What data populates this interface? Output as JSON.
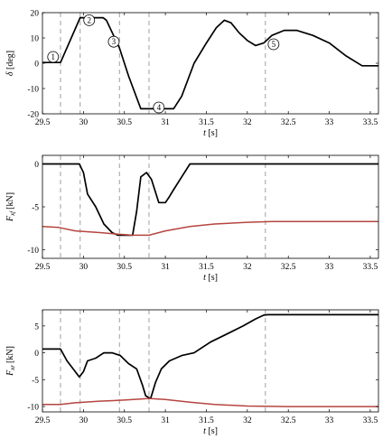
{
  "colors": {
    "black_series": "#000000",
    "red_series": "#b5453f",
    "dashed": "#a8a8a8"
  },
  "event_times": [
    29.72,
    29.96,
    30.44,
    30.8,
    32.22
  ],
  "chart_data": [
    {
      "type": "line",
      "xlim": [
        29.5,
        33.6
      ],
      "ylim": [
        -20,
        20
      ],
      "x_ticks": [
        "29.5",
        "30",
        "30.5",
        "31",
        "31.5",
        "32",
        "32.5",
        "33",
        "33.5"
      ],
      "x_tick_values": [
        29.5,
        30,
        30.5,
        31,
        31.5,
        32,
        32.5,
        33,
        33.5
      ],
      "y_ticks": [
        "-20",
        "-10",
        "0",
        "10",
        "20"
      ],
      "y_tick_values": [
        -20,
        -10,
        0,
        10,
        20
      ],
      "xlabel_symbol": "t",
      "xlabel_unit": "[s]",
      "ylabel_symbol": "δ",
      "ylabel_unit": "[deg]",
      "annotations": [
        {
          "label": "1",
          "x": 29.63,
          "y": 2.5
        },
        {
          "label": "2",
          "x": 30.07,
          "y": 17.0
        },
        {
          "label": "3",
          "x": 30.37,
          "y": 8.5
        },
        {
          "label": "4",
          "x": 30.92,
          "y": -17.5
        },
        {
          "label": "5",
          "x": 32.32,
          "y": 7.5
        }
      ],
      "series": [
        {
          "color_key": "black_series",
          "points": [
            [
              29.5,
              0.3
            ],
            [
              29.72,
              0.3
            ],
            [
              29.96,
              18
            ],
            [
              30.24,
              18
            ],
            [
              30.28,
              17
            ],
            [
              30.44,
              6
            ],
            [
              30.55,
              -5
            ],
            [
              30.7,
              -18
            ],
            [
              30.8,
              -18
            ],
            [
              31.0,
              -18
            ],
            [
              31.1,
              -18
            ],
            [
              31.2,
              -13
            ],
            [
              31.35,
              0
            ],
            [
              31.5,
              8
            ],
            [
              31.62,
              14
            ],
            [
              31.72,
              17
            ],
            [
              31.8,
              16
            ],
            [
              31.9,
              12
            ],
            [
              32.0,
              9
            ],
            [
              32.1,
              7
            ],
            [
              32.2,
              8
            ],
            [
              32.3,
              11
            ],
            [
              32.45,
              13
            ],
            [
              32.6,
              13
            ],
            [
              32.8,
              11
            ],
            [
              33.0,
              8
            ],
            [
              33.2,
              3
            ],
            [
              33.4,
              -1
            ],
            [
              33.6,
              -1
            ]
          ]
        }
      ]
    },
    {
      "type": "line",
      "xlim": [
        29.5,
        33.6
      ],
      "ylim": [
        -11,
        1
      ],
      "x_ticks": [
        "29.5",
        "30",
        "30.5",
        "31",
        "31.5",
        "32",
        "32.5",
        "33",
        "33.5"
      ],
      "x_tick_values": [
        29.5,
        30,
        30.5,
        31,
        31.5,
        32,
        32.5,
        33,
        33.5
      ],
      "y_ticks": [
        "-10",
        "-5",
        "0"
      ],
      "y_tick_values": [
        -10,
        -5,
        0
      ],
      "xlabel_symbol": "t",
      "xlabel_unit": "[s]",
      "ylabel_symbol": "F",
      "ylabel_sub": "xf",
      "ylabel_unit": "[kN]",
      "series": [
        {
          "color_key": "black_series",
          "points": [
            [
              29.5,
              0
            ],
            [
              29.95,
              0
            ],
            [
              30.0,
              -1
            ],
            [
              30.05,
              -3.5
            ],
            [
              30.15,
              -5
            ],
            [
              30.25,
              -7
            ],
            [
              30.35,
              -8
            ],
            [
              30.42,
              -8.3
            ],
            [
              30.6,
              -8.3
            ],
            [
              30.65,
              -5.5
            ],
            [
              30.7,
              -1.5
            ],
            [
              30.77,
              -1
            ],
            [
              30.83,
              -1.8
            ],
            [
              30.92,
              -4.5
            ],
            [
              31.0,
              -4.5
            ],
            [
              31.05,
              -3.8
            ],
            [
              31.1,
              -3
            ],
            [
              31.2,
              -1.5
            ],
            [
              31.3,
              0
            ],
            [
              33.6,
              0
            ]
          ]
        },
        {
          "color_key": "red_series",
          "points": [
            [
              29.5,
              -7.3
            ],
            [
              29.7,
              -7.4
            ],
            [
              29.9,
              -7.8
            ],
            [
              30.2,
              -8.0
            ],
            [
              30.44,
              -8.2
            ],
            [
              30.6,
              -8.3
            ],
            [
              30.8,
              -8.3
            ],
            [
              31.0,
              -7.8
            ],
            [
              31.3,
              -7.3
            ],
            [
              31.6,
              -7.0
            ],
            [
              32.0,
              -6.8
            ],
            [
              32.3,
              -6.7
            ],
            [
              33.6,
              -6.7
            ]
          ]
        }
      ]
    },
    {
      "type": "line",
      "xlim": [
        29.5,
        33.6
      ],
      "ylim": [
        -11,
        8
      ],
      "x_ticks": [
        "29.5",
        "30",
        "30.5",
        "31",
        "31.5",
        "32",
        "32.5",
        "33",
        "33.5"
      ],
      "x_tick_values": [
        29.5,
        30,
        30.5,
        31,
        31.5,
        32,
        32.5,
        33,
        33.5
      ],
      "y_ticks": [
        "-10",
        "-5",
        "0",
        "5"
      ],
      "y_tick_values": [
        -10,
        -5,
        0,
        5
      ],
      "xlabel_symbol": "t",
      "xlabel_unit": "[s]",
      "ylabel_symbol": "F",
      "ylabel_sub": "xr",
      "ylabel_unit": "[kN]",
      "series": [
        {
          "color_key": "black_series",
          "points": [
            [
              29.5,
              0.7
            ],
            [
              29.72,
              0.7
            ],
            [
              29.8,
              -1.5
            ],
            [
              29.9,
              -3.5
            ],
            [
              29.95,
              -4.5
            ],
            [
              30.0,
              -3.5
            ],
            [
              30.05,
              -1.5
            ],
            [
              30.15,
              -1
            ],
            [
              30.25,
              0
            ],
            [
              30.35,
              0
            ],
            [
              30.45,
              -0.5
            ],
            [
              30.55,
              -2
            ],
            [
              30.65,
              -3
            ],
            [
              30.72,
              -6
            ],
            [
              30.76,
              -8
            ],
            [
              30.82,
              -8.5
            ],
            [
              30.88,
              -5.5
            ],
            [
              30.95,
              -3
            ],
            [
              31.05,
              -1.5
            ],
            [
              31.2,
              -0.5
            ],
            [
              31.35,
              0
            ],
            [
              31.55,
              2
            ],
            [
              31.75,
              3.5
            ],
            [
              31.95,
              5
            ],
            [
              32.1,
              6.3
            ],
            [
              32.2,
              7
            ],
            [
              32.25,
              7.1
            ],
            [
              33.6,
              7.1
            ]
          ]
        },
        {
          "color_key": "red_series",
          "points": [
            [
              29.5,
              -9.6
            ],
            [
              29.72,
              -9.6
            ],
            [
              29.9,
              -9.3
            ],
            [
              30.2,
              -9.0
            ],
            [
              30.5,
              -8.8
            ],
            [
              30.7,
              -8.6
            ],
            [
              30.8,
              -8.5
            ],
            [
              31.0,
              -8.7
            ],
            [
              31.3,
              -9.2
            ],
            [
              31.6,
              -9.6
            ],
            [
              32.0,
              -9.9
            ],
            [
              32.5,
              -10
            ],
            [
              33.6,
              -10
            ]
          ]
        }
      ]
    }
  ]
}
